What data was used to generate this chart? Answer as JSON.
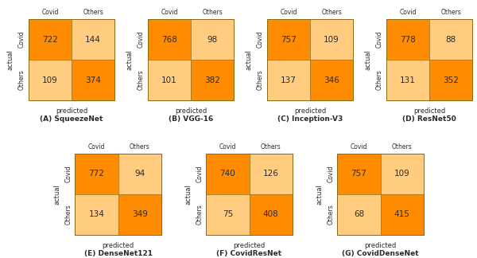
{
  "models": [
    {
      "name": "(A) SqueezeNet",
      "matrix": [
        [
          722,
          144
        ],
        [
          109,
          374
        ]
      ]
    },
    {
      "name": "(B) VGG-16",
      "matrix": [
        [
          768,
          98
        ],
        [
          101,
          382
        ]
      ]
    },
    {
      "name": "(C) Inception-V3",
      "matrix": [
        [
          757,
          109
        ],
        [
          137,
          346
        ]
      ]
    },
    {
      "name": "(D) ResNet50",
      "matrix": [
        [
          778,
          88
        ],
        [
          131,
          352
        ]
      ]
    },
    {
      "name": "(E) DenseNet121",
      "matrix": [
        [
          772,
          94
        ],
        [
          134,
          349
        ]
      ]
    },
    {
      "name": "(F) CovidResNet",
      "matrix": [
        [
          740,
          126
        ],
        [
          75,
          408
        ]
      ]
    },
    {
      "name": "(G) CovidDenseNet",
      "matrix": [
        [
          757,
          109
        ],
        [
          68,
          415
        ]
      ]
    }
  ],
  "col_labels": [
    "Covid",
    "Others"
  ],
  "row_labels": [
    "Covid",
    "Others"
  ],
  "xlabel": "predicted",
  "ylabel": "actual",
  "color_diag": "#FF8C00",
  "color_offdiag": "#FFCC80",
  "bg_color": "#FFFFFF",
  "text_color": "#2b2b2b",
  "border_color": "#8B6914",
  "title_fontsize": 6.5,
  "cell_fontsize": 7.5,
  "label_fontsize": 6,
  "tick_fontsize": 5.5
}
